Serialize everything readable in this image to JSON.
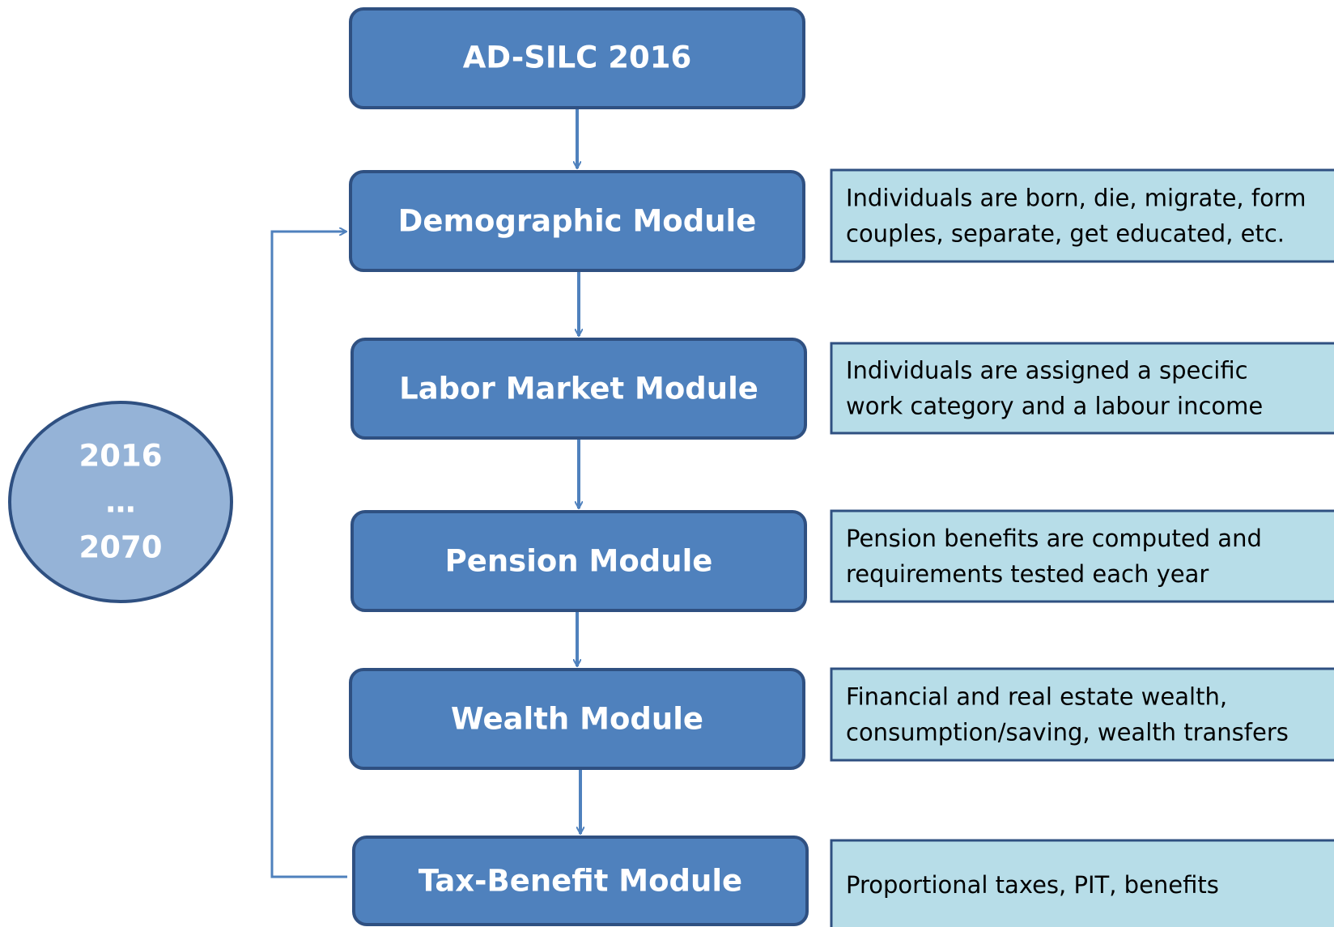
{
  "source": {
    "label": "AD-SILC 2016"
  },
  "modules": [
    {
      "label": "Demographic Module",
      "description": [
        "Individuals are born, die, migrate, form",
        "couples, separate, get educated, etc."
      ]
    },
    {
      "label": "Labor Market Module",
      "description": [
        "Individuals are assigned a specific",
        "work category and a labour income"
      ]
    },
    {
      "label": "Pension Module",
      "description": [
        "Pension benefits are computed and",
        "requirements tested each year"
      ]
    },
    {
      "label": "Wealth Module",
      "description": [
        "Financial and real estate wealth,",
        "consumption/saving, wealth transfers"
      ]
    },
    {
      "label": "Tax-Benefit Module",
      "description": [
        "Proportional taxes, PIT, benefits"
      ]
    }
  ],
  "years": {
    "start": "2016",
    "ellipsis": "…",
    "end": "2070"
  }
}
